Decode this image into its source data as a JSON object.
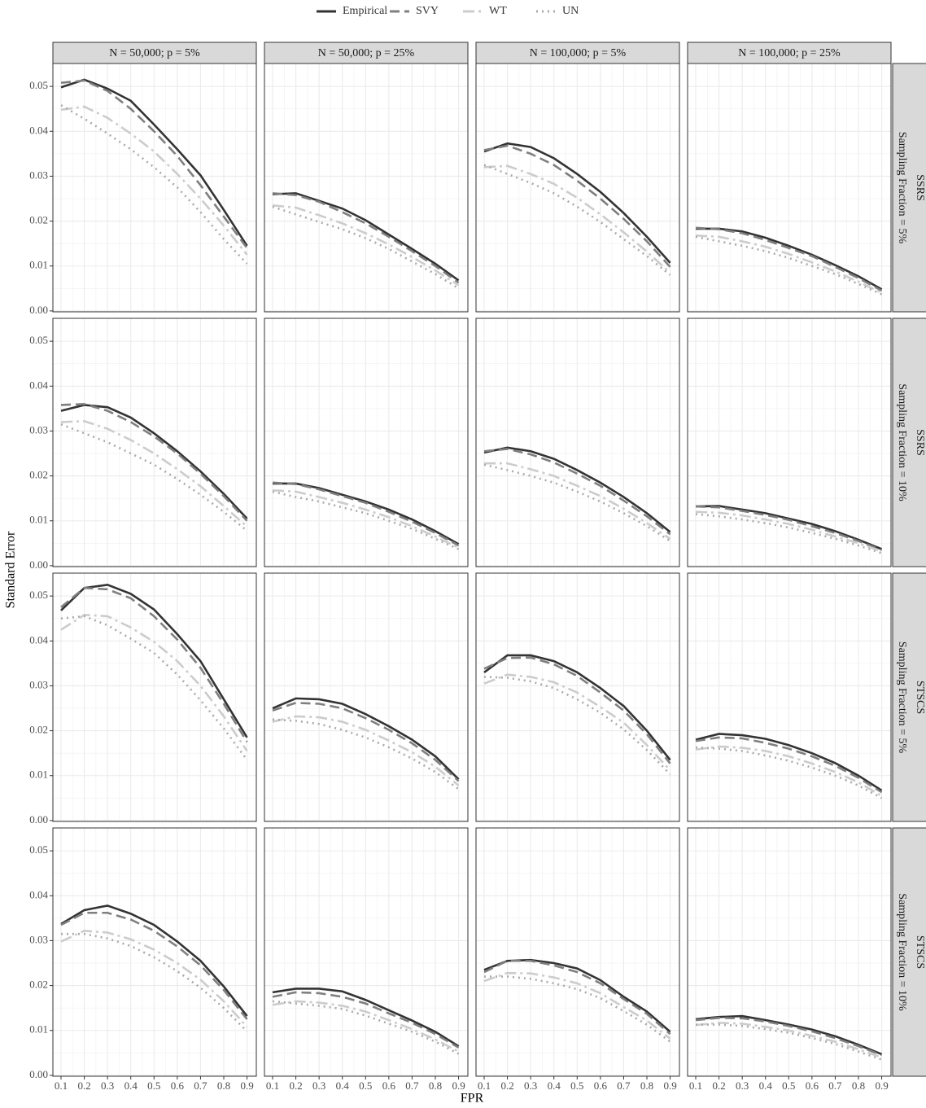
{
  "chart_data": {
    "type": "line",
    "xlabel": "FPR",
    "ylabel": "Standard Error",
    "x": [
      0.1,
      0.2,
      0.3,
      0.4,
      0.5,
      0.6,
      0.7,
      0.8,
      0.9
    ],
    "xlim": [
      0.065,
      0.94
    ],
    "xticks": [
      0.1,
      0.2,
      0.3,
      0.4,
      0.5,
      0.6,
      0.7,
      0.8,
      0.9
    ],
    "ylim": [
      -0.0002,
      0.0551
    ],
    "yticks": [
      {
        "value": 0,
        "label": "0.00"
      },
      {
        "value": 0.01,
        "label": "0.01"
      },
      {
        "value": 0.02,
        "label": "0.02"
      },
      {
        "value": 0.03,
        "label": "0.03"
      },
      {
        "value": 0.04,
        "label": "0.04"
      },
      {
        "value": 0.05,
        "label": "0.05"
      }
    ],
    "grid": true,
    "legend": "top",
    "series": [
      {
        "name": "Empirical",
        "color": "#333333",
        "dash": "solid"
      },
      {
        "name": "SVY",
        "color": "#7f7f7f",
        "dash": "dashed"
      },
      {
        "name": "WT",
        "color": "#cccccc",
        "dash": "dashdot"
      },
      {
        "name": "UN",
        "color": "#aaaaaa",
        "dash": "dotted"
      }
    ],
    "columns": [
      "N = 50,000; p = 5%",
      "N = 50,000; p = 25%",
      "N = 100,000; p = 5%",
      "N = 100,000; p = 25%"
    ],
    "rows": [
      {
        "design": "SSRS",
        "fraction": "Sampling Fraction = 5%"
      },
      {
        "design": "SSRS",
        "fraction": "Sampling Fraction = 10%"
      },
      {
        "design": "STSCS",
        "fraction": "Sampling Fraction = 5%"
      },
      {
        "design": "STSCS",
        "fraction": "Sampling Fraction = 10%"
      }
    ],
    "panels": [
      [
        [
          [
            0.0498,
            0.0515,
            0.0495,
            0.0468,
            0.0415,
            0.036,
            0.0302,
            0.0225,
            0.0145
          ],
          [
            0.0508,
            0.0513,
            0.049,
            0.045,
            0.04,
            0.0345,
            0.028,
            0.021,
            0.014
          ],
          [
            0.0448,
            0.0455,
            0.043,
            0.0395,
            0.0355,
            0.0305,
            0.025,
            0.019,
            0.0125
          ],
          [
            0.0458,
            0.0428,
            0.0395,
            0.036,
            0.032,
            0.0275,
            0.022,
            0.016,
            0.0105
          ]
        ],
        [
          [
            0.026,
            0.0262,
            0.0245,
            0.0228,
            0.0202,
            0.017,
            0.0138,
            0.0105,
            0.0068
          ],
          [
            0.0262,
            0.0258,
            0.0243,
            0.022,
            0.0195,
            0.0165,
            0.0133,
            0.01,
            0.0063
          ],
          [
            0.0235,
            0.023,
            0.0213,
            0.0195,
            0.0173,
            0.0148,
            0.012,
            0.009,
            0.0057
          ],
          [
            0.0232,
            0.0215,
            0.0198,
            0.0182,
            0.0162,
            0.0138,
            0.011,
            0.0082,
            0.005
          ]
        ],
        [
          [
            0.0355,
            0.0373,
            0.0365,
            0.034,
            0.0305,
            0.0265,
            0.0218,
            0.0165,
            0.0107
          ],
          [
            0.0358,
            0.0368,
            0.035,
            0.0325,
            0.029,
            0.025,
            0.0205,
            0.0155,
            0.0098
          ],
          [
            0.032,
            0.0323,
            0.0305,
            0.0283,
            0.0252,
            0.0215,
            0.0175,
            0.0132,
            0.0085
          ],
          [
            0.0325,
            0.0305,
            0.0285,
            0.0262,
            0.0232,
            0.0198,
            0.016,
            0.0122,
            0.008
          ]
        ],
        [
          [
            0.0183,
            0.0183,
            0.0177,
            0.0163,
            0.0145,
            0.0125,
            0.0102,
            0.0077,
            0.0048
          ],
          [
            0.0185,
            0.0182,
            0.0173,
            0.0158,
            0.014,
            0.0122,
            0.0098,
            0.0073,
            0.0045
          ],
          [
            0.0168,
            0.0165,
            0.0155,
            0.0143,
            0.0127,
            0.0108,
            0.0088,
            0.0065,
            0.004
          ],
          [
            0.0165,
            0.0155,
            0.0145,
            0.0133,
            0.0118,
            0.01,
            0.0082,
            0.006,
            0.0037
          ]
        ]
      ],
      [
        [
          [
            0.0345,
            0.0358,
            0.0353,
            0.033,
            0.0295,
            0.0255,
            0.021,
            0.016,
            0.0105
          ],
          [
            0.0358,
            0.036,
            0.0345,
            0.032,
            0.0288,
            0.025,
            0.0205,
            0.0155,
            0.01
          ],
          [
            0.032,
            0.0322,
            0.0305,
            0.028,
            0.025,
            0.0215,
            0.0177,
            0.0133,
            0.0087
          ],
          [
            0.0315,
            0.0295,
            0.0275,
            0.025,
            0.0225,
            0.0193,
            0.0158,
            0.012,
            0.0078
          ]
        ],
        [
          [
            0.0183,
            0.0183,
            0.0173,
            0.0158,
            0.0143,
            0.0125,
            0.0103,
            0.0077,
            0.0048
          ],
          [
            0.0185,
            0.0182,
            0.017,
            0.0155,
            0.014,
            0.012,
            0.0098,
            0.0073,
            0.0045
          ],
          [
            0.0168,
            0.0165,
            0.0153,
            0.014,
            0.0125,
            0.0108,
            0.0088,
            0.0065,
            0.004
          ],
          [
            0.0165,
            0.0153,
            0.0143,
            0.013,
            0.0117,
            0.01,
            0.0082,
            0.006,
            0.0037
          ]
        ],
        [
          [
            0.0252,
            0.0263,
            0.0255,
            0.0238,
            0.0213,
            0.0185,
            0.0153,
            0.0117,
            0.0075
          ],
          [
            0.0255,
            0.026,
            0.0248,
            0.023,
            0.0205,
            0.0178,
            0.0145,
            0.011,
            0.007
          ],
          [
            0.0228,
            0.0228,
            0.0215,
            0.02,
            0.0178,
            0.0155,
            0.0127,
            0.0095,
            0.006
          ],
          [
            0.0225,
            0.0213,
            0.02,
            0.0185,
            0.0165,
            0.0143,
            0.0117,
            0.0088,
            0.0055
          ]
        ],
        [
          [
            0.0132,
            0.0133,
            0.0125,
            0.0117,
            0.0105,
            0.0093,
            0.0077,
            0.0058,
            0.0037
          ],
          [
            0.0132,
            0.013,
            0.0122,
            0.0113,
            0.0102,
            0.0088,
            0.0073,
            0.0055,
            0.0035
          ],
          [
            0.012,
            0.0118,
            0.0112,
            0.0103,
            0.0093,
            0.008,
            0.0065,
            0.005,
            0.0032
          ],
          [
            0.0115,
            0.011,
            0.0103,
            0.0095,
            0.0085,
            0.0073,
            0.006,
            0.0045,
            0.0028
          ]
        ]
      ],
      [
        [
          [
            0.0468,
            0.0518,
            0.0525,
            0.0505,
            0.047,
            0.0415,
            0.0355,
            0.027,
            0.0185
          ],
          [
            0.0475,
            0.0518,
            0.0515,
            0.0495,
            0.0455,
            0.0403,
            0.034,
            0.026,
            0.0175
          ],
          [
            0.0425,
            0.0458,
            0.0455,
            0.043,
            0.0398,
            0.0355,
            0.03,
            0.0232,
            0.0155
          ],
          [
            0.045,
            0.0455,
            0.0435,
            0.0405,
            0.0373,
            0.0325,
            0.0268,
            0.0205,
            0.0135
          ]
        ],
        [
          [
            0.025,
            0.0272,
            0.027,
            0.026,
            0.0237,
            0.021,
            0.018,
            0.0143,
            0.0092
          ],
          [
            0.0245,
            0.0262,
            0.026,
            0.025,
            0.0228,
            0.0202,
            0.0172,
            0.0135,
            0.0088
          ],
          [
            0.022,
            0.0232,
            0.023,
            0.022,
            0.0202,
            0.0178,
            0.0152,
            0.012,
            0.0078
          ],
          [
            0.0225,
            0.0222,
            0.0215,
            0.0202,
            0.0185,
            0.0163,
            0.0138,
            0.0108,
            0.007
          ]
        ],
        [
          [
            0.033,
            0.0368,
            0.0368,
            0.0355,
            0.033,
            0.0295,
            0.0255,
            0.02,
            0.0135
          ],
          [
            0.0338,
            0.0362,
            0.0363,
            0.0348,
            0.0322,
            0.0285,
            0.0245,
            0.0192,
            0.0127
          ],
          [
            0.0305,
            0.0325,
            0.032,
            0.0308,
            0.0285,
            0.0253,
            0.0218,
            0.0168,
            0.0112
          ],
          [
            0.032,
            0.0318,
            0.031,
            0.0295,
            0.027,
            0.024,
            0.0203,
            0.0157,
            0.0103
          ]
        ],
        [
          [
            0.018,
            0.0193,
            0.019,
            0.0182,
            0.0168,
            0.015,
            0.0128,
            0.01,
            0.0067
          ],
          [
            0.0177,
            0.0185,
            0.0183,
            0.0173,
            0.016,
            0.0143,
            0.0122,
            0.0095,
            0.0063
          ],
          [
            0.0158,
            0.0165,
            0.0162,
            0.0155,
            0.0143,
            0.0127,
            0.0108,
            0.0085,
            0.0055
          ],
          [
            0.0163,
            0.016,
            0.0155,
            0.0145,
            0.0133,
            0.0118,
            0.01,
            0.0078,
            0.005
          ]
        ]
      ],
      [
        [
          [
            0.0337,
            0.0368,
            0.0378,
            0.036,
            0.0335,
            0.0298,
            0.0255,
            0.0198,
            0.0132
          ],
          [
            0.0335,
            0.0362,
            0.0362,
            0.0347,
            0.0322,
            0.0287,
            0.0245,
            0.019,
            0.0125
          ],
          [
            0.0298,
            0.0322,
            0.0318,
            0.0303,
            0.028,
            0.025,
            0.0213,
            0.0165,
            0.0108
          ],
          [
            0.0315,
            0.0315,
            0.0305,
            0.0288,
            0.0263,
            0.0232,
            0.0195,
            0.015,
            0.0098
          ]
        ],
        [
          [
            0.0185,
            0.0193,
            0.0193,
            0.0187,
            0.0168,
            0.0145,
            0.0122,
            0.0097,
            0.0065
          ],
          [
            0.0175,
            0.0185,
            0.0183,
            0.0175,
            0.016,
            0.0138,
            0.0117,
            0.0092,
            0.0062
          ],
          [
            0.0157,
            0.0165,
            0.0162,
            0.0155,
            0.0142,
            0.0123,
            0.0103,
            0.008,
            0.0053
          ],
          [
            0.0165,
            0.016,
            0.0155,
            0.0148,
            0.0133,
            0.0115,
            0.0097,
            0.0075,
            0.0048
          ]
        ],
        [
          [
            0.0235,
            0.0255,
            0.0257,
            0.025,
            0.0238,
            0.0212,
            0.0175,
            0.0142,
            0.0097
          ],
          [
            0.023,
            0.0255,
            0.0255,
            0.0245,
            0.023,
            0.0205,
            0.017,
            0.0137,
            0.0092
          ],
          [
            0.021,
            0.0228,
            0.0227,
            0.0218,
            0.0205,
            0.0183,
            0.0152,
            0.0122,
            0.0082
          ],
          [
            0.022,
            0.022,
            0.0215,
            0.0205,
            0.0192,
            0.0172,
            0.0143,
            0.0113,
            0.0075
          ]
        ],
        [
          [
            0.0125,
            0.013,
            0.0132,
            0.0123,
            0.0113,
            0.0102,
            0.0087,
            0.0068,
            0.0047
          ],
          [
            0.0123,
            0.0128,
            0.0127,
            0.012,
            0.011,
            0.0098,
            0.0083,
            0.0065,
            0.0045
          ],
          [
            0.0112,
            0.0117,
            0.0115,
            0.0108,
            0.01,
            0.0088,
            0.0075,
            0.0058,
            0.004
          ],
          [
            0.0113,
            0.0113,
            0.011,
            0.0103,
            0.0095,
            0.0083,
            0.007,
            0.0053,
            0.0035
          ]
        ]
      ]
    ]
  }
}
